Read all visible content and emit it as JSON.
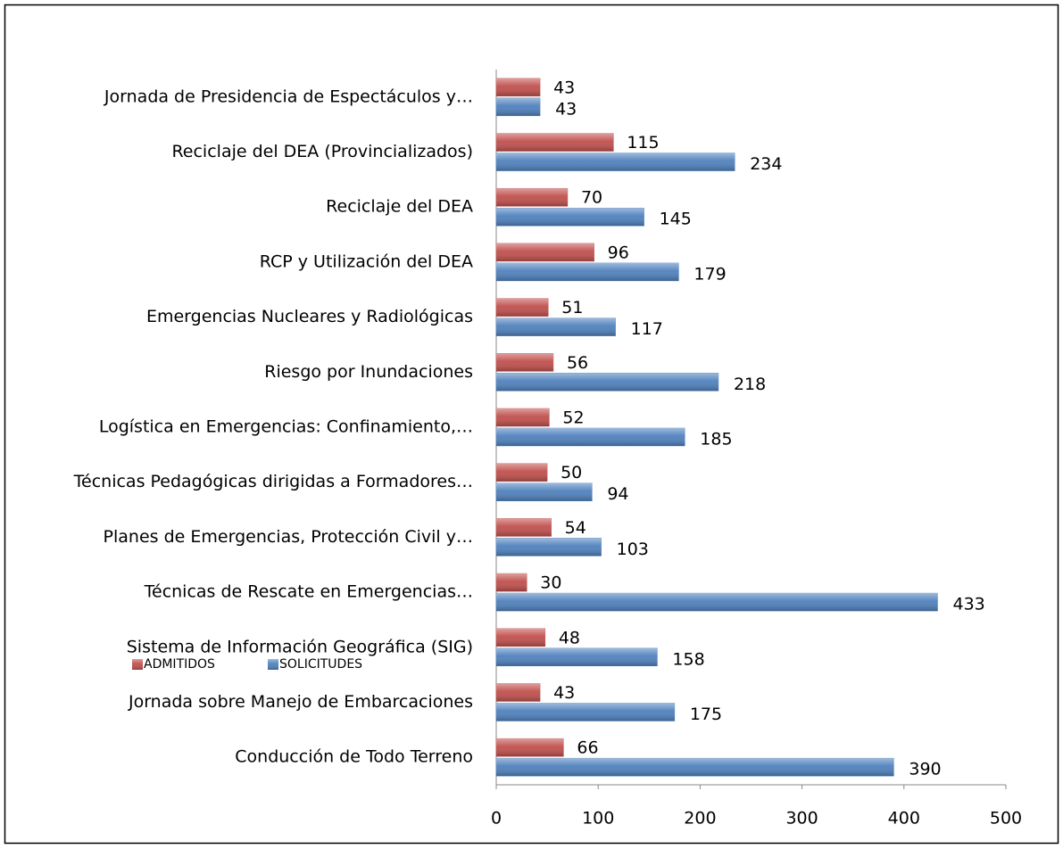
{
  "chart_data": {
    "type": "bar",
    "orientation": "horizontal",
    "categories": [
      "Jornada de Presidencia de Espectáculos y…",
      "Reciclaje del DEA (Provincializados)",
      "Reciclaje del DEA",
      "RCP y Utilización del DEA",
      "Emergencias Nucleares y Radiológicas",
      "Riesgo por Inundaciones",
      "Logística en Emergencias: Confinamiento,…",
      "Técnicas Pedagógicas dirigidas a Formadores…",
      "Planes de Emergencias, Protección Civil y…",
      "Técnicas de Rescate en Emergencias…",
      "Sistema de Información Geográfica (SIG)",
      "Jornada sobre Manejo de Embarcaciones",
      "Conducción de Todo Terreno"
    ],
    "series": [
      {
        "name": "ADMITIDOS",
        "color": "#c0504d",
        "values": [
          43,
          115,
          70,
          96,
          51,
          56,
          52,
          50,
          54,
          30,
          48,
          43,
          66
        ]
      },
      {
        "name": "SOLICITUDES",
        "color": "#4f81bd",
        "values": [
          43,
          234,
          145,
          179,
          117,
          218,
          185,
          94,
          103,
          433,
          158,
          175,
          390
        ]
      }
    ],
    "xlim": [
      0,
      500
    ],
    "xticks": [
      0,
      100,
      200,
      300,
      400,
      500
    ],
    "grid": false,
    "legend": "bottom-left"
  }
}
